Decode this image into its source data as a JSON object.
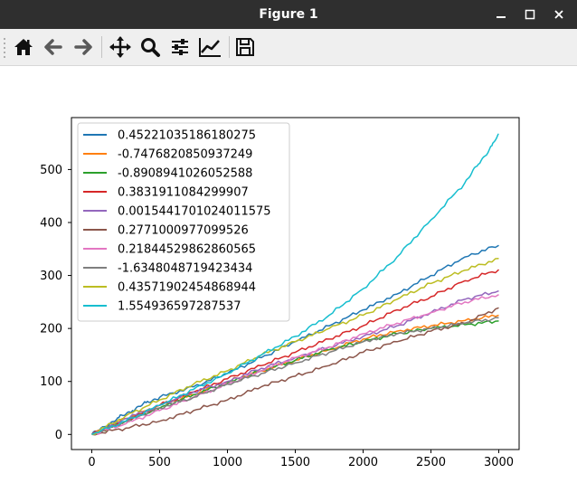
{
  "window": {
    "title": "Figure 1"
  },
  "toolbar": {
    "buttons": [
      {
        "name": "home-icon",
        "label": "Home"
      },
      {
        "name": "back-icon",
        "label": "Back"
      },
      {
        "name": "forward-icon",
        "label": "Forward"
      },
      {
        "name": "pan-icon",
        "label": "Pan"
      },
      {
        "name": "zoom-icon",
        "label": "Zoom"
      },
      {
        "name": "subplots-icon",
        "label": "Subplots"
      },
      {
        "name": "edit-axes-icon",
        "label": "Customize"
      },
      {
        "name": "save-icon",
        "label": "Save"
      }
    ]
  },
  "colors": {
    "titlebar": "#2f2f2f",
    "toolbar": "#efefef"
  },
  "chart_data": {
    "type": "line",
    "title": "",
    "xlabel": "",
    "ylabel": "",
    "xlim": [
      -150,
      3150
    ],
    "ylim": [
      -28.5,
      598
    ],
    "xticks": [
      0,
      500,
      1000,
      1500,
      2000,
      2500,
      3000
    ],
    "yticks": [
      0,
      100,
      200,
      300,
      400,
      500
    ],
    "grid": false,
    "legend": "upper left",
    "series": [
      {
        "name": "0.45221035186180275",
        "color": "#1f77b4",
        "x": [
          0,
          100,
          200,
          300,
          400,
          500,
          750,
          1000,
          1250,
          1500,
          1750,
          2000,
          2250,
          2500,
          2750,
          3000
        ],
        "y": [
          0,
          15,
          32,
          45,
          60,
          70,
          90,
          115,
          145,
          175,
          205,
          235,
          265,
          300,
          335,
          357
        ]
      },
      {
        "name": "-0.7476820850937249",
        "color": "#ff7f0e",
        "x": [
          0,
          250,
          500,
          750,
          1000,
          1250,
          1500,
          1750,
          2000,
          2250,
          2500,
          2750,
          3000
        ],
        "y": [
          0,
          30,
          55,
          75,
          100,
          120,
          140,
          160,
          180,
          195,
          205,
          215,
          225
        ]
      },
      {
        "name": "-0.8908941026052588",
        "color": "#2ca02c",
        "x": [
          0,
          250,
          500,
          750,
          1000,
          1250,
          1500,
          1750,
          2000,
          2250,
          2500,
          2750,
          3000
        ],
        "y": [
          0,
          25,
          50,
          75,
          97,
          120,
          140,
          160,
          175,
          190,
          200,
          207,
          214
        ]
      },
      {
        "name": "0.3831911084299907",
        "color": "#d62728",
        "x": [
          0,
          250,
          500,
          750,
          1000,
          1250,
          1500,
          1750,
          2000,
          2250,
          2500,
          2750,
          3000
        ],
        "y": [
          0,
          25,
          55,
          80,
          105,
          130,
          155,
          180,
          205,
          235,
          260,
          290,
          311
        ]
      },
      {
        "name": "0.0015441701024011575",
        "color": "#9467bd",
        "x": [
          0,
          250,
          500,
          750,
          1000,
          1250,
          1500,
          1750,
          2000,
          2250,
          2500,
          2750,
          3000
        ],
        "y": [
          0,
          30,
          55,
          80,
          100,
          125,
          145,
          165,
          185,
          205,
          230,
          255,
          271
        ]
      },
      {
        "name": "0.2771000977099526",
        "color": "#8c564b",
        "x": [
          0,
          250,
          500,
          750,
          1000,
          1250,
          1500,
          1750,
          2000,
          2250,
          2500,
          2750,
          3000
        ],
        "y": [
          0,
          12,
          25,
          45,
          65,
          90,
          110,
          130,
          155,
          175,
          195,
          210,
          239
        ]
      },
      {
        "name": "0.21844529862860565",
        "color": "#e377c2",
        "x": [
          0,
          250,
          500,
          750,
          1000,
          1250,
          1500,
          1750,
          2000,
          2250,
          2500,
          2750,
          3000
        ],
        "y": [
          0,
          20,
          45,
          70,
          95,
          120,
          145,
          165,
          190,
          210,
          230,
          250,
          264
        ]
      },
      {
        "name": "-1.6348048719423434",
        "color": "#7f7f7f",
        "x": [
          0,
          250,
          500,
          750,
          1000,
          1250,
          1500,
          1750,
          2000,
          2250,
          2500,
          2750,
          3000
        ],
        "y": [
          0,
          25,
          50,
          70,
          95,
          115,
          135,
          155,
          175,
          190,
          200,
          210,
          220
        ]
      },
      {
        "name": "0.43571902454868944",
        "color": "#bcbd22",
        "x": [
          0,
          250,
          500,
          750,
          1000,
          1250,
          1500,
          1750,
          2000,
          2250,
          2500,
          2750,
          3000
        ],
        "y": [
          0,
          35,
          65,
          95,
          120,
          150,
          175,
          200,
          225,
          255,
          285,
          310,
          332
        ]
      },
      {
        "name": "1.554936597287537",
        "color": "#17becf",
        "x": [
          0,
          250,
          500,
          750,
          1000,
          1250,
          1500,
          1750,
          2000,
          2250,
          2500,
          2750,
          2850,
          2950,
          3000
        ],
        "y": [
          0,
          25,
          55,
          85,
          115,
          150,
          185,
          225,
          275,
          335,
          405,
          475,
          510,
          545,
          567
        ]
      }
    ]
  }
}
